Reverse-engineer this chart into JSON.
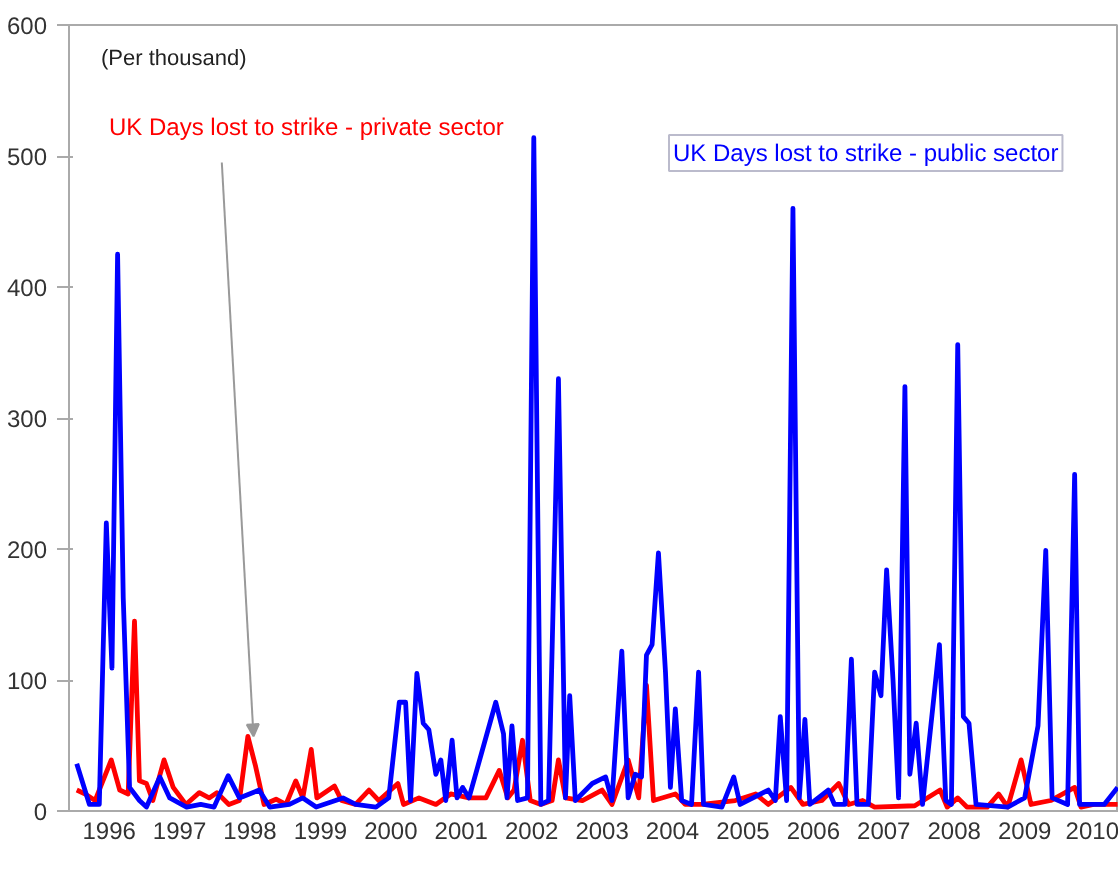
{
  "chart_data": {
    "type": "line",
    "annotations": [
      "(Per thousand)"
    ],
    "xlim": [
      1995.93,
      2010.84
    ],
    "ylim": [
      0,
      600
    ],
    "yticks": [
      0,
      100,
      200,
      300,
      400,
      500,
      600
    ],
    "xticks": [
      {
        "value": 1996.5,
        "label": "1996"
      },
      {
        "value": 1997.5,
        "label": "1997"
      },
      {
        "value": 1998.5,
        "label": "1998"
      },
      {
        "value": 1999.5,
        "label": "1999"
      },
      {
        "value": 2000.5,
        "label": "2000"
      },
      {
        "value": 2001.5,
        "label": "2001"
      },
      {
        "value": 2002.5,
        "label": "2002"
      },
      {
        "value": 2003.5,
        "label": "2003"
      },
      {
        "value": 2004.5,
        "label": "2004"
      },
      {
        "value": 2005.5,
        "label": "2005"
      },
      {
        "value": 2006.5,
        "label": "2006"
      },
      {
        "value": 2007.5,
        "label": "2007"
      },
      {
        "value": 2008.5,
        "label": "2008"
      },
      {
        "value": 2009.5,
        "label": "2009"
      },
      {
        "value": 2010.5,
        "label": "2010"
      }
    ],
    "grid": false,
    "marker": "none",
    "line_style": "solid",
    "series": [
      {
        "name": "UK Days lost to strike - private sector",
        "color": "#ff0000",
        "x": [
          1996.04,
          1996.16,
          1996.3,
          1996.53,
          1996.65,
          1996.77,
          1996.86,
          1996.93,
          1997.03,
          1997.12,
          1997.28,
          1997.41,
          1997.59,
          1997.78,
          1997.92,
          1998.03,
          1998.2,
          1998.35,
          1998.47,
          1998.58,
          1998.7,
          1998.87,
          1999.01,
          1999.15,
          1999.25,
          1999.37,
          1999.45,
          1999.7,
          1999.8,
          2000.0,
          2000.19,
          2000.33,
          2000.6,
          2000.68,
          2000.9,
          2001.14,
          2001.35,
          2001.61,
          2001.85,
          2002.04,
          2002.16,
          2002.25,
          2002.37,
          2002.48,
          2002.63,
          2002.79,
          2002.88,
          2002.98,
          2003.22,
          2003.5,
          2003.64,
          2003.87,
          2004.02,
          2004.13,
          2004.23,
          2004.54,
          2004.68,
          2004.92,
          2005.39,
          2005.68,
          2005.86,
          2006.18,
          2006.35,
          2006.62,
          2006.86,
          2007.0,
          2007.2,
          2007.37,
          2007.94,
          2008.3,
          2008.4,
          2008.55,
          2008.68,
          2008.97,
          2009.13,
          2009.26,
          2009.45,
          2009.59,
          2009.87,
          2010.21,
          2010.3,
          2010.48,
          2010.82
        ],
        "values": [
          16,
          13,
          8,
          39,
          16,
          13,
          145,
          23,
          21,
          8,
          39,
          18,
          5,
          14,
          10,
          14,
          5,
          8,
          57,
          34,
          5,
          9,
          5,
          23,
          10,
          47,
          10,
          19,
          8,
          5,
          16,
          8,
          21,
          5,
          10,
          5,
          13,
          10,
          10,
          31,
          10,
          16,
          54,
          8,
          5,
          8,
          39,
          10,
          8,
          16,
          5,
          39,
          10,
          96,
          8,
          13,
          5,
          5,
          8,
          13,
          5,
          18,
          5,
          8,
          21,
          5,
          8,
          3,
          4,
          16,
          3,
          10,
          3,
          3,
          13,
          3,
          39,
          5,
          8,
          18,
          3,
          5,
          5
        ]
      },
      {
        "name": "UK Days lost to strike - public sector",
        "color": "#0000ff",
        "x": [
          1996.04,
          1996.22,
          1996.36,
          1996.46,
          1996.54,
          1996.62,
          1996.7,
          1996.79,
          1996.93,
          1997.03,
          1997.22,
          1997.36,
          1997.6,
          1997.8,
          1997.99,
          1998.19,
          1998.35,
          1998.63,
          1998.78,
          1999.06,
          1999.25,
          1999.44,
          1999.82,
          2000.0,
          2000.29,
          2000.47,
          2000.62,
          2000.71,
          2000.78,
          2000.87,
          2000.96,
          2001.04,
          2001.14,
          2001.21,
          2001.28,
          2001.37,
          2001.44,
          2001.52,
          2001.61,
          2001.99,
          2002.1,
          2002.15,
          2002.22,
          2002.3,
          2002.44,
          2002.53,
          2002.63,
          2002.74,
          2002.88,
          2002.98,
          2003.04,
          2003.12,
          2003.36,
          2003.55,
          2003.64,
          2003.78,
          2003.87,
          2003.97,
          2004.06,
          2004.13,
          2004.21,
          2004.3,
          2004.4,
          2004.47,
          2004.54,
          2004.63,
          2004.77,
          2004.87,
          2004.94,
          2005.2,
          2005.37,
          2005.46,
          2005.86,
          2005.96,
          2006.03,
          2006.12,
          2006.21,
          2006.3,
          2006.38,
          2006.45,
          2006.71,
          2006.8,
          2006.95,
          2007.04,
          2007.12,
          2007.28,
          2007.37,
          2007.46,
          2007.54,
          2007.63,
          2007.71,
          2007.8,
          2007.87,
          2007.96,
          2008.05,
          2008.29,
          2008.38,
          2008.46,
          2008.55,
          2008.63,
          2008.71,
          2008.81,
          2009.26,
          2009.5,
          2009.69,
          2009.8,
          2009.89,
          2010.11,
          2010.21,
          2010.28,
          2010.63,
          2010.82
        ],
        "values": [
          36,
          5,
          5,
          220,
          109,
          425,
          163,
          18,
          8,
          3,
          26,
          10,
          3,
          5,
          3,
          27,
          10,
          16,
          3,
          5,
          10,
          3,
          10,
          5,
          3,
          10,
          83,
          83,
          8,
          105,
          67,
          62,
          28,
          39,
          8,
          54,
          10,
          18,
          10,
          83,
          59,
          10,
          65,
          8,
          10,
          514,
          5,
          8,
          330,
          10,
          88,
          8,
          21,
          26,
          8,
          122,
          10,
          28,
          26,
          119,
          127,
          197,
          106,
          18,
          78,
          8,
          5,
          106,
          5,
          3,
          26,
          5,
          16,
          8,
          72,
          8,
          460,
          10,
          70,
          5,
          16,
          5,
          5,
          116,
          5,
          5,
          106,
          88,
          184,
          101,
          10,
          324,
          28,
          67,
          5,
          127,
          8,
          5,
          356,
          72,
          67,
          5,
          3,
          10,
          65,
          199,
          10,
          5,
          257,
          5,
          5,
          18
        ]
      }
    ]
  }
}
